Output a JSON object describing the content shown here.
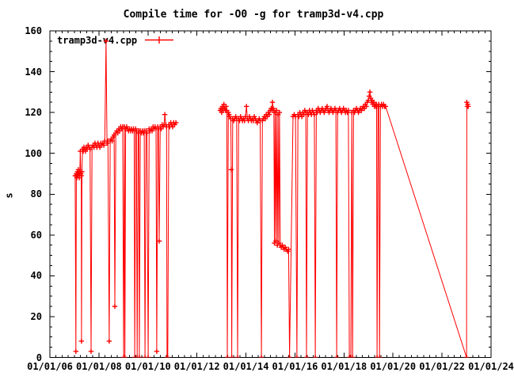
{
  "title": "Compile time for -O0 -g for tramp3d-v4.cpp",
  "legend": {
    "series_label": "tramp3d-v4.cpp"
  },
  "colors": {
    "series": "#ff0000",
    "axis": "#000000",
    "background": "#ffffff"
  },
  "chart_data": {
    "type": "line",
    "title": "Compile time for -O0 -g for tramp3d-v4.cpp",
    "xlabel": "",
    "ylabel": "s",
    "series_name": "tramp3d-v4.cpp",
    "color": "#ff0000",
    "marker": "plus",
    "grid": false,
    "legend_position": "top-left-inside",
    "x_range_years": [
      2006,
      2024
    ],
    "x_tick_labels": [
      "01/01/06",
      "01/01/08",
      "01/01/10",
      "01/01/12",
      "01/01/14",
      "01/01/16",
      "01/01/18",
      "01/01/20",
      "01/01/22",
      "01/01/24"
    ],
    "x_tick_step_years": 2,
    "x_minor_interval_years": 0.25,
    "ylim": [
      0,
      160
    ],
    "y_tick_labels": [
      "0",
      "20",
      "40",
      "60",
      "80",
      "100",
      "120",
      "140",
      "160"
    ],
    "y_tick_step": 20,
    "y_minor_interval": 5,
    "segments": [
      [
        [
          2007.03,
          89
        ],
        [
          2007.06,
          3
        ],
        [
          2007.08,
          90
        ],
        [
          2007.1,
          88
        ],
        [
          2007.12,
          91
        ],
        [
          2007.14,
          89
        ],
        [
          2007.16,
          92
        ],
        [
          2007.18,
          90
        ],
        [
          2007.2,
          88
        ],
        [
          2007.22,
          91
        ],
        [
          2007.24,
          101
        ],
        [
          2007.26,
          90
        ],
        [
          2007.28,
          89
        ],
        [
          2007.29,
          8
        ],
        [
          2007.31,
          91
        ],
        [
          2007.33,
          102
        ],
        [
          2007.36,
          101
        ],
        [
          2007.39,
          103
        ],
        [
          2007.42,
          102
        ],
        [
          2007.45,
          101
        ],
        [
          2007.48,
          103
        ],
        [
          2007.52,
          102
        ],
        [
          2007.56,
          104
        ],
        [
          2007.6,
          103
        ],
        [
          2007.64,
          102
        ],
        [
          2007.68,
          3
        ],
        [
          2007.72,
          103
        ],
        [
          2007.76,
          104
        ],
        [
          2007.8,
          103
        ],
        [
          2007.84,
          105
        ],
        [
          2007.88,
          104
        ],
        [
          2007.92,
          103
        ],
        [
          2007.96,
          105
        ],
        [
          2008.0,
          104
        ],
        [
          2008.04,
          103
        ],
        [
          2008.08,
          105
        ],
        [
          2008.12,
          104
        ],
        [
          2008.16,
          105
        ],
        [
          2008.2,
          104
        ],
        [
          2008.24,
          106
        ],
        [
          2008.29,
          155
        ],
        [
          2008.33,
          105
        ],
        [
          2008.37,
          106
        ],
        [
          2008.42,
          8
        ],
        [
          2008.46,
          106
        ],
        [
          2008.5,
          107
        ],
        [
          2008.54,
          106
        ],
        [
          2008.58,
          108
        ],
        [
          2008.62,
          109
        ],
        [
          2008.65,
          25
        ],
        [
          2008.69,
          110
        ],
        [
          2008.73,
          111
        ],
        [
          2008.77,
          110
        ],
        [
          2008.81,
          112
        ],
        [
          2008.85,
          111
        ],
        [
          2008.89,
          113
        ],
        [
          2008.93,
          112
        ],
        [
          2008.97,
          113
        ],
        [
          2009.01,
          0
        ],
        [
          2009.04,
          113
        ],
        [
          2009.06,
          0
        ],
        [
          2009.09,
          112
        ],
        [
          2009.13,
          113
        ],
        [
          2009.17,
          112
        ],
        [
          2009.21,
          111
        ],
        [
          2009.25,
          112
        ],
        [
          2009.29,
          111
        ],
        [
          2009.33,
          112
        ],
        [
          2009.37,
          111
        ],
        [
          2009.41,
          112
        ],
        [
          2009.44,
          111
        ],
        [
          2009.46,
          0
        ],
        [
          2009.5,
          112
        ],
        [
          2009.53,
          111
        ],
        [
          2009.56,
          0
        ],
        [
          2009.6,
          110
        ],
        [
          2009.63,
          111
        ],
        [
          2009.65,
          0
        ],
        [
          2009.69,
          111
        ],
        [
          2009.73,
          110
        ],
        [
          2009.77,
          111
        ],
        [
          2009.81,
          110
        ],
        [
          2009.85,
          111
        ],
        [
          2009.88,
          0
        ],
        [
          2009.92,
          111
        ],
        [
          2009.96,
          110
        ],
        [
          2010.01,
          0
        ],
        [
          2010.05,
          112
        ],
        [
          2010.09,
          111
        ],
        [
          2010.13,
          112
        ],
        [
          2010.17,
          111
        ],
        [
          2010.21,
          113
        ],
        [
          2010.25,
          112
        ],
        [
          2010.29,
          113
        ],
        [
          2010.33,
          112
        ],
        [
          2010.36,
          3
        ],
        [
          2010.4,
          113
        ],
        [
          2010.43,
          112
        ],
        [
          2010.46,
          57
        ],
        [
          2010.5,
          113
        ],
        [
          2010.54,
          112
        ],
        [
          2010.58,
          114
        ],
        [
          2010.62,
          113
        ],
        [
          2010.66,
          114
        ],
        [
          2010.69,
          119
        ],
        [
          2010.73,
          114
        ],
        [
          2010.76,
          113
        ],
        [
          2010.78,
          0
        ],
        [
          2010.81,
          0
        ],
        [
          2010.85,
          114
        ],
        [
          2010.89,
          113
        ],
        [
          2010.93,
          115
        ],
        [
          2010.97,
          114
        ],
        [
          2011.01,
          113
        ],
        [
          2011.05,
          115
        ],
        [
          2011.09,
          114
        ],
        [
          2011.14,
          115
        ]
      ],
      [
        [
          2012.95,
          121
        ],
        [
          2012.98,
          122
        ],
        [
          2013.01,
          120
        ],
        [
          2013.04,
          123
        ],
        [
          2013.07,
          121
        ],
        [
          2013.1,
          124
        ],
        [
          2013.13,
          122
        ],
        [
          2013.16,
          121
        ],
        [
          2013.19,
          123
        ],
        [
          2013.22,
          121
        ],
        [
          2013.24,
          0
        ],
        [
          2013.28,
          120
        ],
        [
          2013.31,
          119
        ],
        [
          2013.34,
          118
        ],
        [
          2013.38,
          117
        ],
        [
          2013.4,
          92
        ],
        [
          2013.42,
          0
        ],
        [
          2013.46,
          117
        ],
        [
          2013.5,
          116
        ],
        [
          2013.54,
          117
        ],
        [
          2013.58,
          118
        ],
        [
          2013.62,
          117
        ],
        [
          2013.66,
          0
        ],
        [
          2013.7,
          117
        ],
        [
          2013.74,
          116
        ],
        [
          2013.78,
          118
        ],
        [
          2013.82,
          117
        ],
        [
          2013.86,
          116
        ],
        [
          2013.9,
          117
        ],
        [
          2013.94,
          116
        ],
        [
          2013.98,
          118
        ],
        [
          2014.02,
          123
        ],
        [
          2014.06,
          117
        ],
        [
          2014.1,
          116
        ],
        [
          2014.14,
          118
        ],
        [
          2014.18,
          117
        ],
        [
          2014.22,
          116
        ],
        [
          2014.26,
          117
        ],
        [
          2014.3,
          116
        ],
        [
          2014.34,
          118
        ],
        [
          2014.38,
          117
        ],
        [
          2014.42,
          116
        ],
        [
          2014.46,
          115
        ],
        [
          2014.5,
          116
        ],
        [
          2014.54,
          117
        ],
        [
          2014.58,
          116
        ],
        [
          2014.63,
          0
        ],
        [
          2014.67,
          116
        ],
        [
          2014.71,
          117
        ],
        [
          2014.75,
          118
        ],
        [
          2014.79,
          117
        ],
        [
          2014.83,
          119
        ],
        [
          2014.87,
          118
        ],
        [
          2014.91,
          120
        ],
        [
          2014.95,
          119
        ],
        [
          2014.99,
          121
        ],
        [
          2015.03,
          122
        ],
        [
          2015.06,
          121
        ],
        [
          2015.08,
          125
        ],
        [
          2015.11,
          122
        ],
        [
          2015.14,
          121
        ],
        [
          2015.16,
          56
        ],
        [
          2015.19,
          120
        ],
        [
          2015.22,
          57
        ],
        [
          2015.25,
          121
        ],
        [
          2015.28,
          55
        ],
        [
          2015.31,
          119
        ],
        [
          2015.34,
          56
        ],
        [
          2015.37,
          120
        ],
        [
          2015.4,
          55
        ],
        [
          2015.44,
          54
        ],
        [
          2015.48,
          55
        ],
        [
          2015.52,
          54
        ],
        [
          2015.56,
          53
        ],
        [
          2015.6,
          54
        ],
        [
          2015.64,
          53
        ],
        [
          2015.7,
          52
        ],
        [
          2015.74,
          53
        ],
        [
          2015.78,
          0
        ],
        [
          2015.92,
          118
        ],
        [
          2015.97,
          119
        ],
        [
          2016.02,
          118
        ],
        [
          2016.08,
          0
        ],
        [
          2016.12,
          119
        ],
        [
          2016.16,
          118
        ],
        [
          2016.2,
          120
        ],
        [
          2016.24,
          119
        ],
        [
          2016.28,
          118
        ],
        [
          2016.32,
          120
        ],
        [
          2016.36,
          119
        ],
        [
          2016.4,
          121
        ],
        [
          2016.44,
          120
        ],
        [
          2016.47,
          0
        ],
        [
          2016.51,
          120
        ],
        [
          2016.55,
          119
        ],
        [
          2016.59,
          121
        ],
        [
          2016.63,
          120
        ],
        [
          2016.67,
          119
        ],
        [
          2016.71,
          121
        ],
        [
          2016.75,
          120
        ],
        [
          2016.79,
          119
        ],
        [
          2016.83,
          0
        ],
        [
          2016.87,
          121
        ],
        [
          2016.91,
          120
        ],
        [
          2016.95,
          122
        ],
        [
          2016.99,
          121
        ],
        [
          2017.03,
          120
        ],
        [
          2017.07,
          121
        ],
        [
          2017.11,
          122
        ],
        [
          2017.15,
          121
        ],
        [
          2017.19,
          120
        ],
        [
          2017.23,
          121
        ],
        [
          2017.27,
          122
        ],
        [
          2017.31,
          123
        ],
        [
          2017.35,
          121
        ],
        [
          2017.39,
          120
        ],
        [
          2017.43,
          121
        ],
        [
          2017.47,
          122
        ],
        [
          2017.51,
          121
        ],
        [
          2017.55,
          120
        ],
        [
          2017.59,
          121
        ],
        [
          2017.63,
          122
        ],
        [
          2017.67,
          121
        ],
        [
          2017.7,
          0
        ],
        [
          2017.74,
          120
        ],
        [
          2017.78,
          121
        ],
        [
          2017.82,
          122
        ],
        [
          2017.86,
          121
        ],
        [
          2017.9,
          120
        ],
        [
          2017.94,
          121
        ],
        [
          2017.98,
          122
        ],
        [
          2018.02,
          121
        ],
        [
          2018.06,
          120
        ],
        [
          2018.1,
          121
        ],
        [
          2018.14,
          120
        ],
        [
          2018.18,
          121
        ],
        [
          2018.22,
          0
        ],
        [
          2018.28,
          0
        ],
        [
          2018.32,
          120
        ],
        [
          2018.35,
          0
        ],
        [
          2018.39,
          121
        ],
        [
          2018.43,
          120
        ],
        [
          2018.47,
          121
        ],
        [
          2018.51,
          122
        ],
        [
          2018.55,
          121
        ],
        [
          2018.59,
          120
        ],
        [
          2018.63,
          121
        ],
        [
          2018.67,
          122
        ],
        [
          2018.71,
          121
        ],
        [
          2018.75,
          122
        ],
        [
          2018.79,
          123
        ],
        [
          2018.83,
          122
        ],
        [
          2018.87,
          124
        ],
        [
          2018.91,
          123
        ],
        [
          2018.95,
          125
        ],
        [
          2018.99,
          126
        ],
        [
          2019.03,
          128
        ],
        [
          2019.06,
          130
        ],
        [
          2019.09,
          127
        ],
        [
          2019.12,
          125
        ],
        [
          2019.15,
          126
        ],
        [
          2019.18,
          124
        ],
        [
          2019.21,
          125
        ],
        [
          2019.24,
          123
        ],
        [
          2019.27,
          124
        ],
        [
          2019.3,
          123
        ],
        [
          2019.33,
          124
        ],
        [
          2019.35,
          0
        ],
        [
          2019.39,
          123
        ],
        [
          2019.42,
          124
        ],
        [
          2019.45,
          0
        ],
        [
          2019.49,
          123
        ],
        [
          2019.53,
          124
        ],
        [
          2019.57,
          123
        ],
        [
          2019.61,
          124
        ],
        [
          2019.65,
          123
        ],
        [
          2019.7,
          123
        ],
        [
          2023.0,
          0
        ],
        [
          2023.01,
          125
        ],
        [
          2023.03,
          123
        ],
        [
          2023.05,
          124
        ],
        [
          2023.07,
          123
        ]
      ]
    ]
  }
}
